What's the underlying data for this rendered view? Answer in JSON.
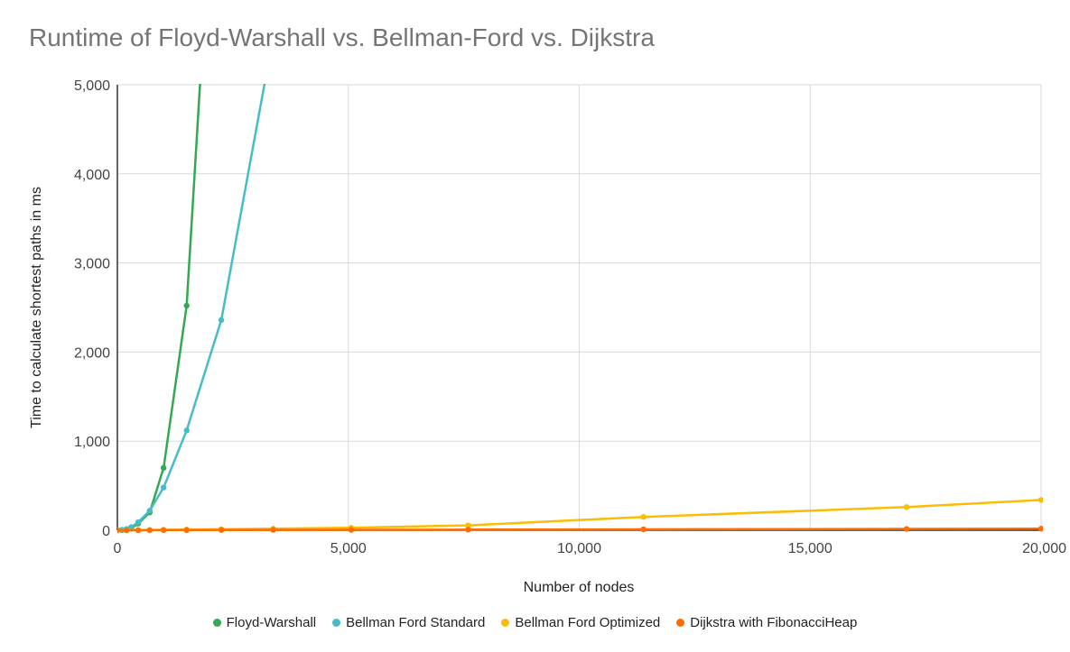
{
  "chart_data": {
    "type": "line",
    "title": "Runtime of Floyd-Warshall vs. Bellman-Ford vs. Dijkstra",
    "xlabel": "Number of nodes",
    "ylabel": "Time to calculate shortest paths in ms",
    "xlim": [
      0,
      20000
    ],
    "ylim": [
      0,
      5000
    ],
    "xticks": [
      0,
      5000,
      10000,
      15000,
      20000
    ],
    "xtick_labels": [
      "0",
      "5,000",
      "10,000",
      "15,000",
      "20,000"
    ],
    "yticks": [
      0,
      1000,
      2000,
      3000,
      4000,
      5000
    ],
    "ytick_labels": [
      "0",
      "1,000",
      "2,000",
      "3,000",
      "4,000",
      "5,000"
    ],
    "grid": true,
    "legend_position": "bottom",
    "series": [
      {
        "name": "Floyd-Warshall",
        "color": "#34a853",
        "points": [
          [
            0,
            0
          ],
          [
            100,
            1
          ],
          [
            200,
            5
          ],
          [
            300,
            20
          ],
          [
            450,
            75
          ],
          [
            700,
            200
          ],
          [
            1000,
            700
          ],
          [
            1500,
            2520
          ],
          [
            1800,
            5100
          ]
        ]
      },
      {
        "name": "Bellman Ford Standard",
        "color": "#46bdc6",
        "points": [
          [
            0,
            0
          ],
          [
            100,
            5
          ],
          [
            200,
            15
          ],
          [
            300,
            35
          ],
          [
            450,
            90
          ],
          [
            700,
            220
          ],
          [
            1000,
            480
          ],
          [
            1500,
            1120
          ],
          [
            2250,
            2360
          ],
          [
            3200,
            5050
          ]
        ]
      },
      {
        "name": "Bellman Ford Optimized",
        "color": "#fbbc04",
        "points": [
          [
            0,
            0
          ],
          [
            200,
            1
          ],
          [
            450,
            2
          ],
          [
            700,
            3
          ],
          [
            1000,
            5
          ],
          [
            1500,
            8
          ],
          [
            2250,
            12
          ],
          [
            3375,
            18
          ],
          [
            5063,
            28
          ],
          [
            7594,
            55
          ],
          [
            11391,
            150
          ],
          [
            17086,
            260
          ],
          [
            20000,
            340
          ]
        ]
      },
      {
        "name": "Dijkstra with FibonacciHeap",
        "color": "#ff6d01",
        "points": [
          [
            0,
            0
          ],
          [
            200,
            0
          ],
          [
            450,
            1
          ],
          [
            700,
            1
          ],
          [
            1000,
            2
          ],
          [
            1500,
            2
          ],
          [
            2250,
            3
          ],
          [
            3375,
            4
          ],
          [
            5063,
            5
          ],
          [
            7594,
            7
          ],
          [
            11391,
            10
          ],
          [
            17086,
            15
          ],
          [
            20000,
            18
          ]
        ]
      }
    ]
  }
}
